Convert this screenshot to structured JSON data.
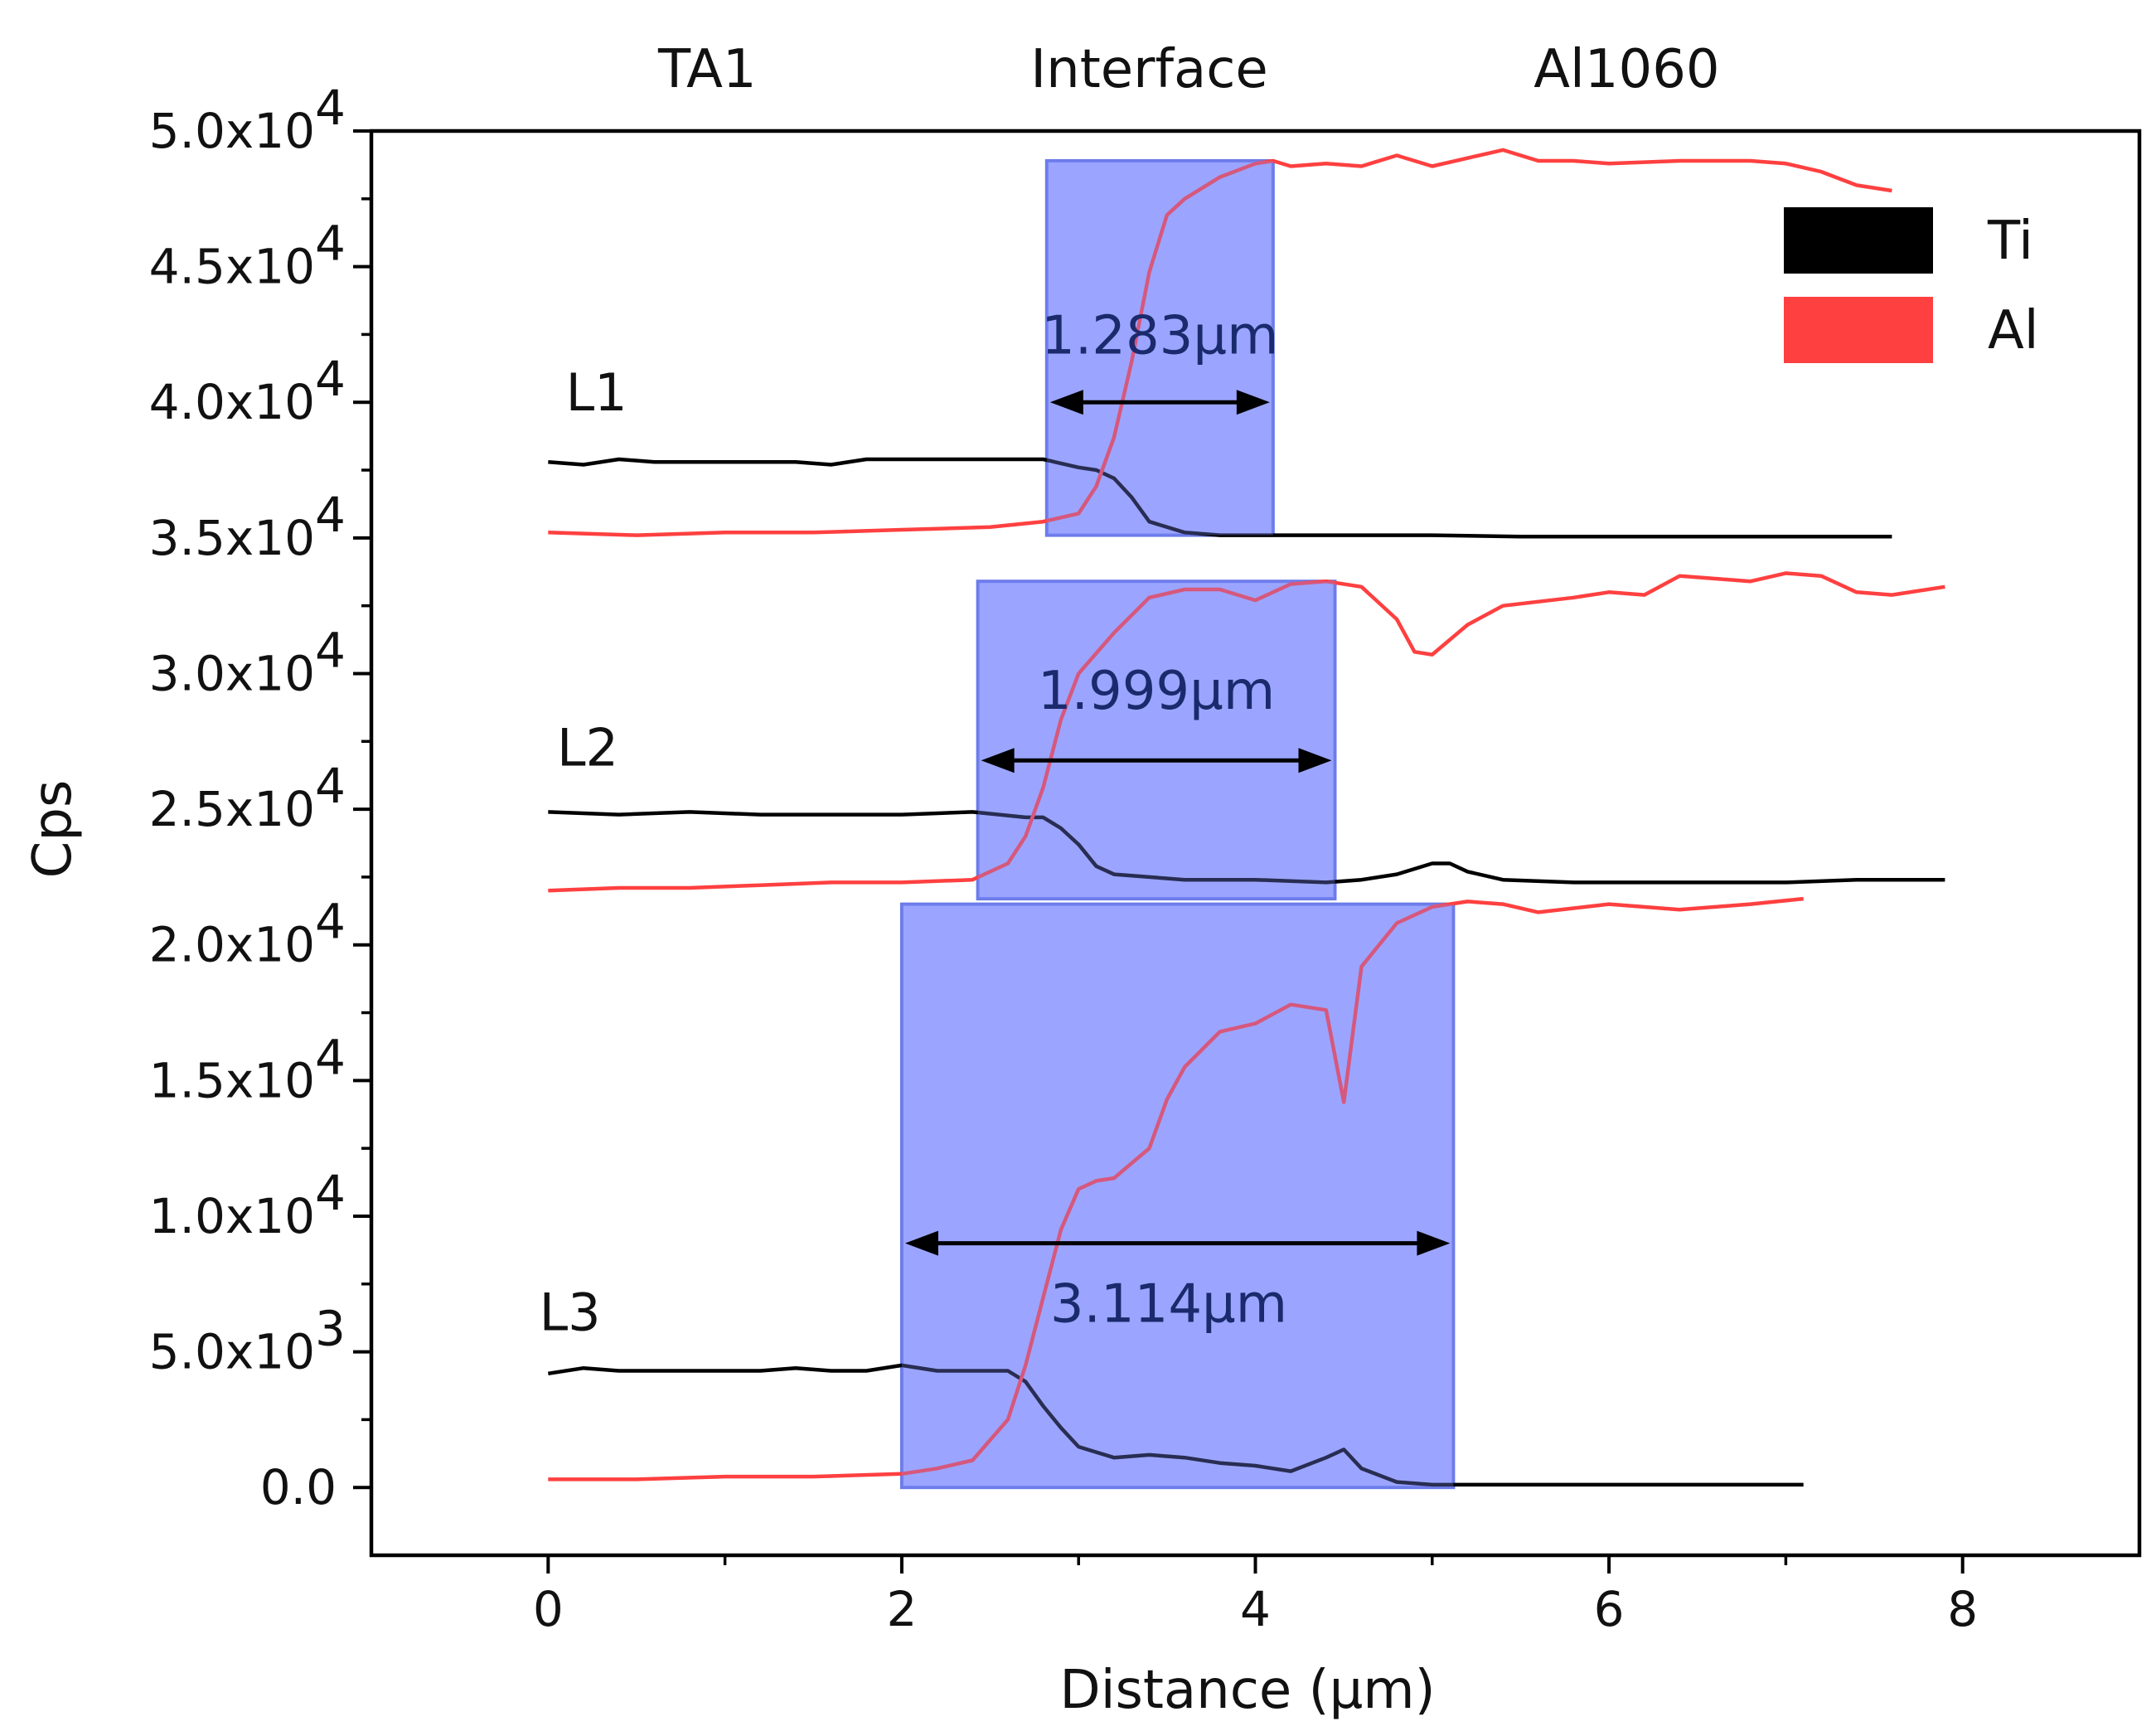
{
  "chart_data": {
    "type": "line",
    "xlabel": "Distance (μm)",
    "ylabel": "Cps",
    "xlim": [
      -1,
      9
    ],
    "ylim": [
      -2500,
      50000
    ],
    "xticks": [
      {
        "value": 0,
        "label": "0"
      },
      {
        "value": 2,
        "label": "2"
      },
      {
        "value": 4,
        "label": "4"
      },
      {
        "value": 6,
        "label": "6"
      },
      {
        "value": 8,
        "label": "8"
      }
    ],
    "yticks": [
      {
        "value": 0,
        "label": "0.0",
        "exp": ""
      },
      {
        "value": 5000,
        "label": "5.0x10",
        "exp": "3"
      },
      {
        "value": 10000,
        "label": "1.0x10",
        "exp": "4"
      },
      {
        "value": 15000,
        "label": "1.5x10",
        "exp": "4"
      },
      {
        "value": 20000,
        "label": "2.0x10",
        "exp": "4"
      },
      {
        "value": 25000,
        "label": "2.5x10",
        "exp": "4"
      },
      {
        "value": 30000,
        "label": "3.0x10",
        "exp": "4"
      },
      {
        "value": 35000,
        "label": "3.5x10",
        "exp": "4"
      },
      {
        "value": 40000,
        "label": "4.0x10",
        "exp": "4"
      },
      {
        "value": 45000,
        "label": "4.5x10",
        "exp": "4"
      },
      {
        "value": 50000,
        "label": "5.0x10",
        "exp": "4"
      }
    ],
    "region_labels": [
      {
        "text": "TA1",
        "x": 0.9
      },
      {
        "text": "Interface",
        "x": 3.4
      },
      {
        "text": "Al1060",
        "x": 6.1
      }
    ],
    "legend": {
      "position": "top-right",
      "items": [
        {
          "name": "Ti",
          "color": "#000000"
        },
        {
          "name": "Al",
          "color": "#ff4040"
        }
      ]
    },
    "profiles": [
      {
        "name": "L1",
        "label_x": 0.1,
        "label_y": 39700,
        "interface": {
          "x0": 2.82,
          "x1": 4.1,
          "y0": 35100,
          "y1": 48900
        },
        "width_label": "1.283μm",
        "arrow_y": 40000,
        "width_label_y": 41800,
        "Ti": {
          "x": [
            0,
            0.2,
            0.4,
            0.6,
            0.8,
            1.0,
            1.2,
            1.4,
            1.6,
            1.8,
            2.0,
            2.2,
            2.4,
            2.6,
            2.8,
            3.0,
            3.1,
            3.2,
            3.3,
            3.4,
            3.6,
            3.8,
            4.0,
            4.2,
            4.5,
            5.0,
            5.5,
            6.0,
            6.5,
            7.0,
            7.6
          ],
          "y": [
            37800,
            37700,
            37900,
            37800,
            37800,
            37800,
            37800,
            37800,
            37700,
            37900,
            37900,
            37900,
            37900,
            37900,
            37900,
            37600,
            37500,
            37200,
            36500,
            35600,
            35200,
            35100,
            35100,
            35100,
            35100,
            35100,
            35050,
            35050,
            35050,
            35050,
            35050
          ]
        },
        "Al": {
          "x": [
            0,
            0.5,
            1.0,
            1.5,
            2.0,
            2.5,
            2.8,
            3.0,
            3.1,
            3.2,
            3.3,
            3.4,
            3.5,
            3.6,
            3.8,
            4.0,
            4.1,
            4.2,
            4.4,
            4.6,
            4.8,
            5.0,
            5.2,
            5.4,
            5.6,
            5.8,
            6.0,
            6.4,
            6.8,
            7.0,
            7.2,
            7.4,
            7.6
          ],
          "y": [
            35200,
            35100,
            35200,
            35200,
            35300,
            35400,
            35600,
            35900,
            36900,
            38700,
            41500,
            44800,
            46900,
            47500,
            48300,
            48800,
            48900,
            48700,
            48800,
            48700,
            49100,
            48700,
            49000,
            49300,
            48900,
            48900,
            48800,
            48900,
            48900,
            48800,
            48500,
            48000,
            47800
          ]
        }
      },
      {
        "name": "L2",
        "label_x": 0.05,
        "label_y": 26600,
        "interface": {
          "x0": 2.43,
          "x1": 4.45,
          "y0": 21700,
          "y1": 33400
        },
        "width_label": "1.999μm",
        "arrow_y": 26800,
        "width_label_y": 28700,
        "Ti": {
          "x": [
            0,
            0.4,
            0.8,
            1.2,
            1.6,
            2.0,
            2.4,
            2.7,
            2.8,
            2.9,
            3.0,
            3.1,
            3.2,
            3.4,
            3.6,
            3.8,
            4.0,
            4.4,
            4.6,
            4.8,
            5.0,
            5.1,
            5.2,
            5.4,
            5.8,
            6.2,
            6.6,
            7.0,
            7.4,
            7.9
          ],
          "y": [
            24900,
            24800,
            24900,
            24800,
            24800,
            24800,
            24900,
            24700,
            24700,
            24300,
            23700,
            22900,
            22600,
            22500,
            22400,
            22400,
            22400,
            22300,
            22400,
            22600,
            23000,
            23000,
            22700,
            22400,
            22300,
            22300,
            22300,
            22300,
            22400,
            22400
          ]
        },
        "Al": {
          "x": [
            0,
            0.4,
            0.8,
            1.2,
            1.6,
            2.0,
            2.4,
            2.6,
            2.7,
            2.8,
            2.9,
            3.0,
            3.2,
            3.4,
            3.6,
            3.8,
            4.0,
            4.2,
            4.4,
            4.6,
            4.8,
            4.9,
            5.0,
            5.2,
            5.4,
            5.8,
            6.0,
            6.2,
            6.4,
            6.8,
            7.0,
            7.2,
            7.4,
            7.6,
            7.9
          ],
          "y": [
            22000,
            22100,
            22100,
            22200,
            22300,
            22300,
            22400,
            23000,
            24000,
            25800,
            28300,
            30000,
            31500,
            32800,
            33100,
            33100,
            32700,
            33300,
            33400,
            33200,
            32000,
            30800,
            30700,
            31800,
            32500,
            32800,
            33000,
            32900,
            33600,
            33400,
            33700,
            33600,
            33000,
            32900,
            33200
          ]
        }
      },
      {
        "name": "L3",
        "label_x": -0.05,
        "label_y": 5800,
        "interface": {
          "x0": 2.0,
          "x1": 5.12,
          "y0": 0,
          "y1": 21500
        },
        "width_label": "3.114μm",
        "arrow_y": 9000,
        "width_label_y": 6100,
        "Ti": {
          "x": [
            0,
            0.2,
            0.4,
            0.6,
            0.8,
            1.0,
            1.2,
            1.4,
            1.6,
            1.8,
            2.0,
            2.2,
            2.4,
            2.6,
            2.7,
            2.8,
            2.9,
            3.0,
            3.2,
            3.4,
            3.6,
            3.8,
            4.0,
            4.2,
            4.4,
            4.5,
            4.6,
            4.8,
            5.0,
            5.5,
            6.0,
            6.5,
            7.1
          ],
          "y": [
            4200,
            4400,
            4300,
            4300,
            4300,
            4300,
            4300,
            4400,
            4300,
            4300,
            4500,
            4300,
            4300,
            4300,
            3900,
            3000,
            2200,
            1500,
            1100,
            1200,
            1100,
            900,
            800,
            600,
            1100,
            1400,
            700,
            200,
            100,
            100,
            100,
            100,
            100
          ]
        },
        "Al": {
          "x": [
            0,
            0.5,
            1.0,
            1.5,
            2.0,
            2.2,
            2.4,
            2.6,
            2.7,
            2.8,
            2.9,
            3.0,
            3.1,
            3.2,
            3.4,
            3.5,
            3.6,
            3.8,
            4.0,
            4.2,
            4.4,
            4.5,
            4.6,
            4.8,
            5.0,
            5.1,
            5.2,
            5.4,
            5.6,
            6.0,
            6.4,
            6.8,
            7.1
          ],
          "y": [
            300,
            300,
            400,
            400,
            500,
            700,
            1000,
            2500,
            4500,
            7000,
            9500,
            11000,
            11300,
            11400,
            12500,
            14300,
            15500,
            16800,
            17100,
            17800,
            17600,
            14200,
            19200,
            20800,
            21400,
            21500,
            21600,
            21500,
            21200,
            21500,
            21300,
            21500,
            21700
          ]
        }
      }
    ]
  }
}
